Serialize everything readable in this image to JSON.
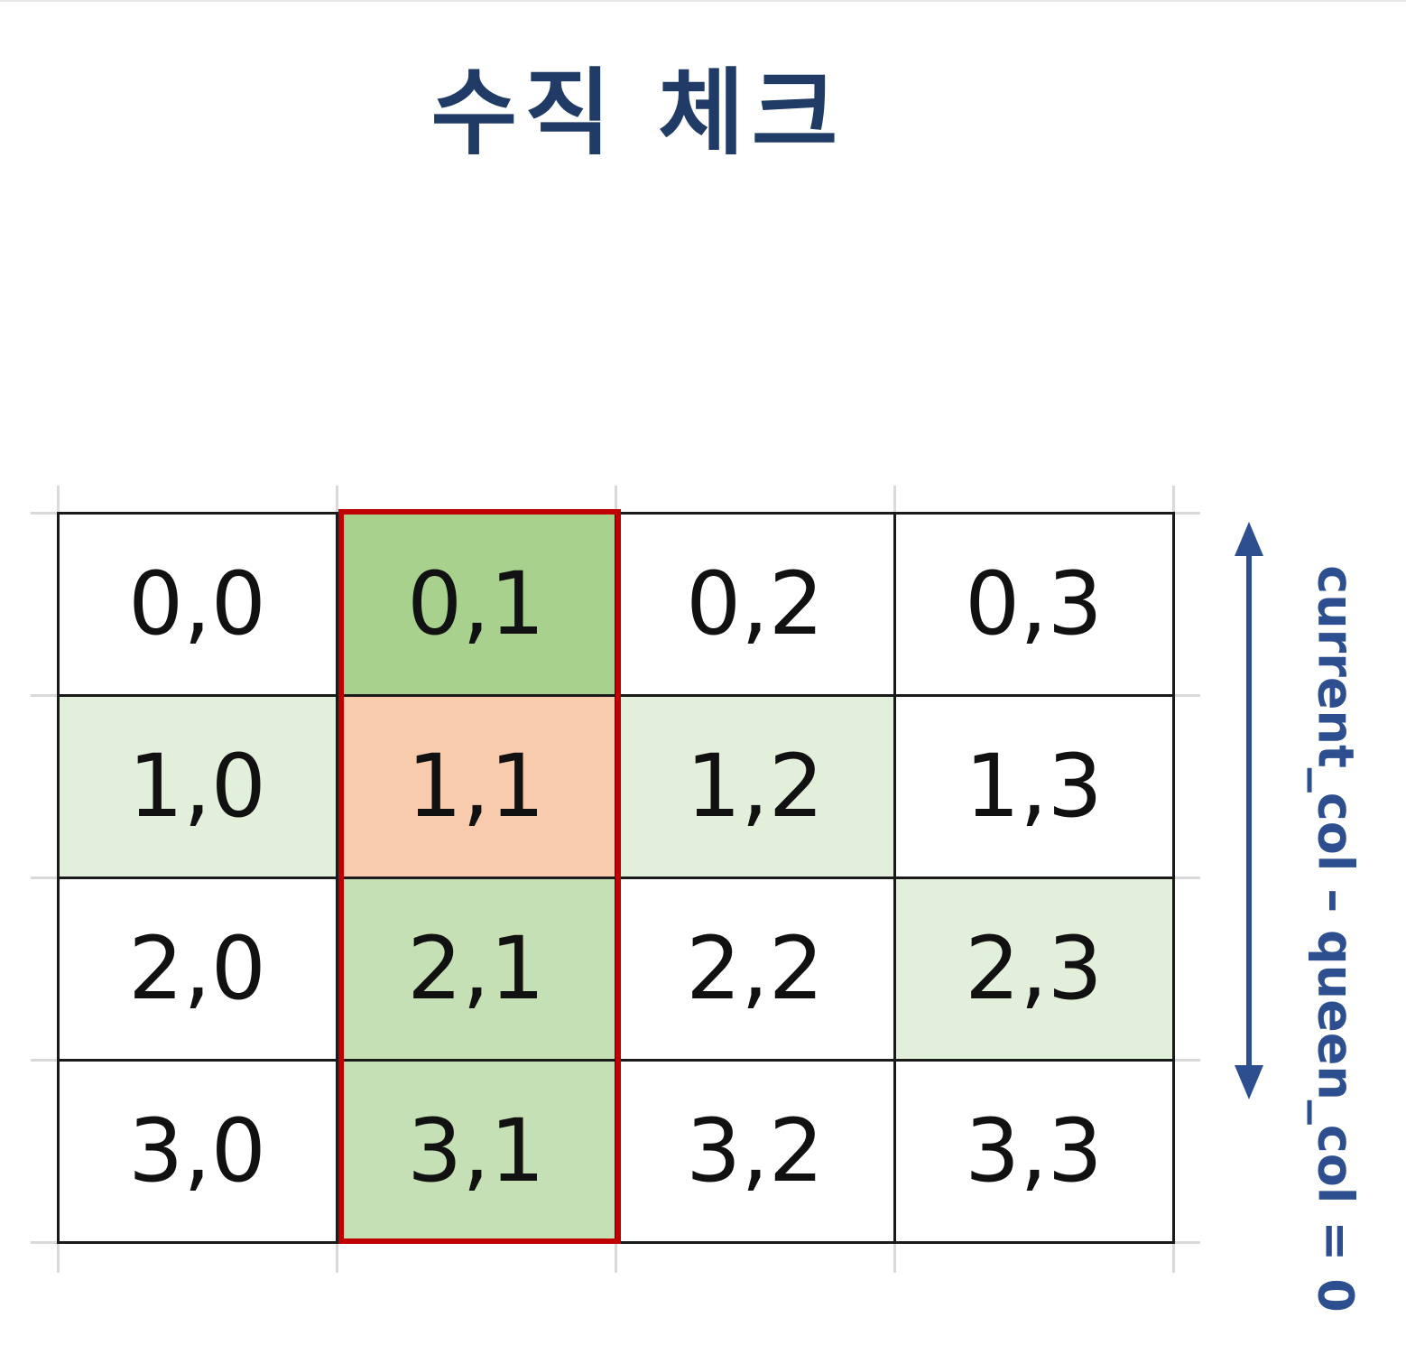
{
  "title": "수직 체크",
  "side_label": "current_col – queen_col = 0",
  "colors": {
    "title": "#1f3b66",
    "highlight_border": "#c00000",
    "queen_cell": "#f8cbad",
    "column_dark": "#a9d18e",
    "column_light": "#c5e0b4",
    "attack_cell": "#e2efda",
    "arrow": "#2e4f8f"
  },
  "board": {
    "rows": [
      [
        {
          "label": "0,0",
          "state": "none"
        },
        {
          "label": "0,1",
          "state": "column_dark"
        },
        {
          "label": "0,2",
          "state": "none"
        },
        {
          "label": "0,3",
          "state": "none"
        }
      ],
      [
        {
          "label": "1,0",
          "state": "attack_cell"
        },
        {
          "label": "1,1",
          "state": "queen_cell"
        },
        {
          "label": "1,2",
          "state": "attack_cell"
        },
        {
          "label": "1,3",
          "state": "none"
        }
      ],
      [
        {
          "label": "2,0",
          "state": "none"
        },
        {
          "label": "2,1",
          "state": "column_light"
        },
        {
          "label": "2,2",
          "state": "none"
        },
        {
          "label": "2,3",
          "state": "attack_cell"
        }
      ],
      [
        {
          "label": "3,0",
          "state": "none"
        },
        {
          "label": "3,1",
          "state": "column_light"
        },
        {
          "label": "3,2",
          "state": "none"
        },
        {
          "label": "3,3",
          "state": "none"
        }
      ]
    ],
    "highlighted_column": 1
  }
}
